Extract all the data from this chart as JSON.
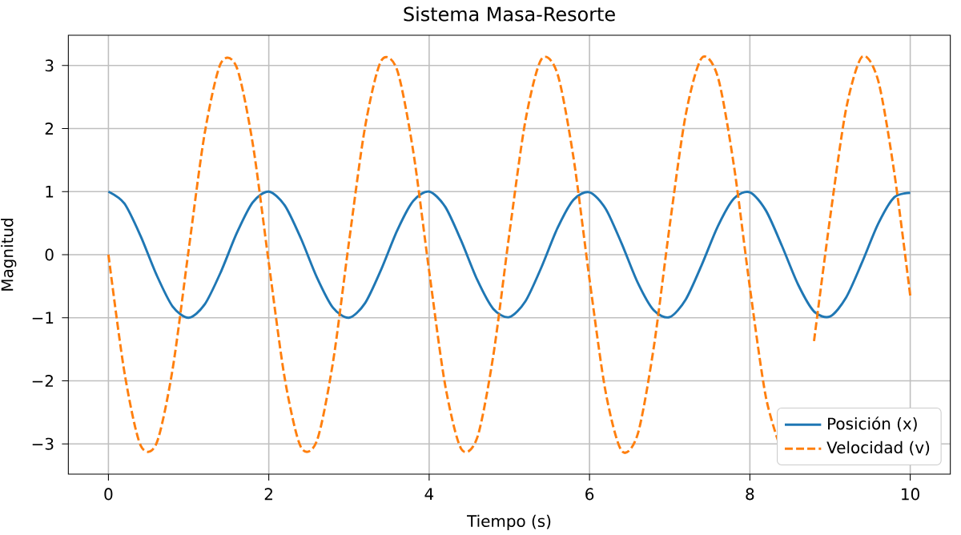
{
  "chart_data": {
    "type": "line",
    "title": "Sistema Masa-Resorte",
    "xlabel": "Tiempo (s)",
    "ylabel": "Magnitud",
    "x": [
      0,
      0.2,
      0.4,
      0.6,
      0.8,
      1,
      1.2,
      1.4,
      1.6,
      1.8,
      2,
      2.2,
      2.4,
      2.6,
      2.8,
      3,
      3.2,
      3.4,
      3.6,
      3.8,
      4,
      4.2,
      4.4,
      4.6,
      4.8,
      5,
      5.2,
      5.4,
      5.6,
      5.8,
      6,
      6.2,
      6.4,
      6.6,
      6.8,
      7,
      7.2,
      7.4,
      7.6,
      7.8,
      8,
      8.2,
      8.4,
      8.6,
      8.8,
      9,
      9.2,
      9.4,
      9.6,
      9.8,
      10
    ],
    "series": [
      {
        "name": "Posición (x)",
        "color": "#1f77b4",
        "line_style": "solid",
        "values": [
          1,
          0.81,
          0.3,
          -0.32,
          -0.82,
          -1.0,
          -0.79,
          -0.28,
          0.34,
          0.83,
          1.0,
          0.78,
          0.26,
          -0.36,
          -0.84,
          -1.0,
          -0.77,
          -0.24,
          0.38,
          0.85,
          1.0,
          0.76,
          0.22,
          -0.4,
          -0.86,
          -0.99,
          -0.74,
          -0.2,
          0.42,
          0.87,
          0.99,
          0.73,
          0.18,
          -0.44,
          -0.88,
          -0.99,
          -0.71,
          -0.16,
          0.45,
          0.89,
          0.99,
          0.7,
          0.14,
          -0.47,
          -0.9,
          -0.98,
          -0.68,
          -0.12,
          0.49,
          0.91,
          0.98
        ]
      },
      {
        "name": "Velocidad (v)",
        "color": "#ff7f0e",
        "line_style": "dashed",
        "values": [
          0,
          -1.87,
          -3.02,
          -2.99,
          -1.82,
          0.07,
          1.92,
          3.03,
          2.97,
          1.76,
          -0.13,
          -1.97,
          -3.05,
          -2.95,
          -1.71,
          0.2,
          2.02,
          3.07,
          2.93,
          1.65,
          -0.26,
          -2.07,
          -3.08,
          -2.9,
          -1.6,
          0.33,
          2.12,
          3.1,
          2.87,
          1.54,
          -0.39,
          -2.17,
          -3.11,
          -2.85,
          -1.48,
          0.46,
          2.22,
          3.12,
          2.82,
          1.42,
          -0.52,
          -2.26,
          -3.13,
          null,
          -1.37,
          0.58,
          2.31,
          3.14,
          2.76,
          1.31,
          -0.65
        ]
      }
    ],
    "xlim": [
      -0.5,
      10.5
    ],
    "ylim": [
      -3.48,
      3.48
    ],
    "xticks": [
      0,
      2,
      4,
      6,
      8,
      10
    ],
    "yticks": [
      {
        "value": -3,
        "label": "−3"
      },
      {
        "value": -2,
        "label": "−2"
      },
      {
        "value": -1,
        "label": "−1"
      },
      0,
      1,
      2,
      3
    ],
    "grid": true,
    "legend": "bottom right"
  }
}
